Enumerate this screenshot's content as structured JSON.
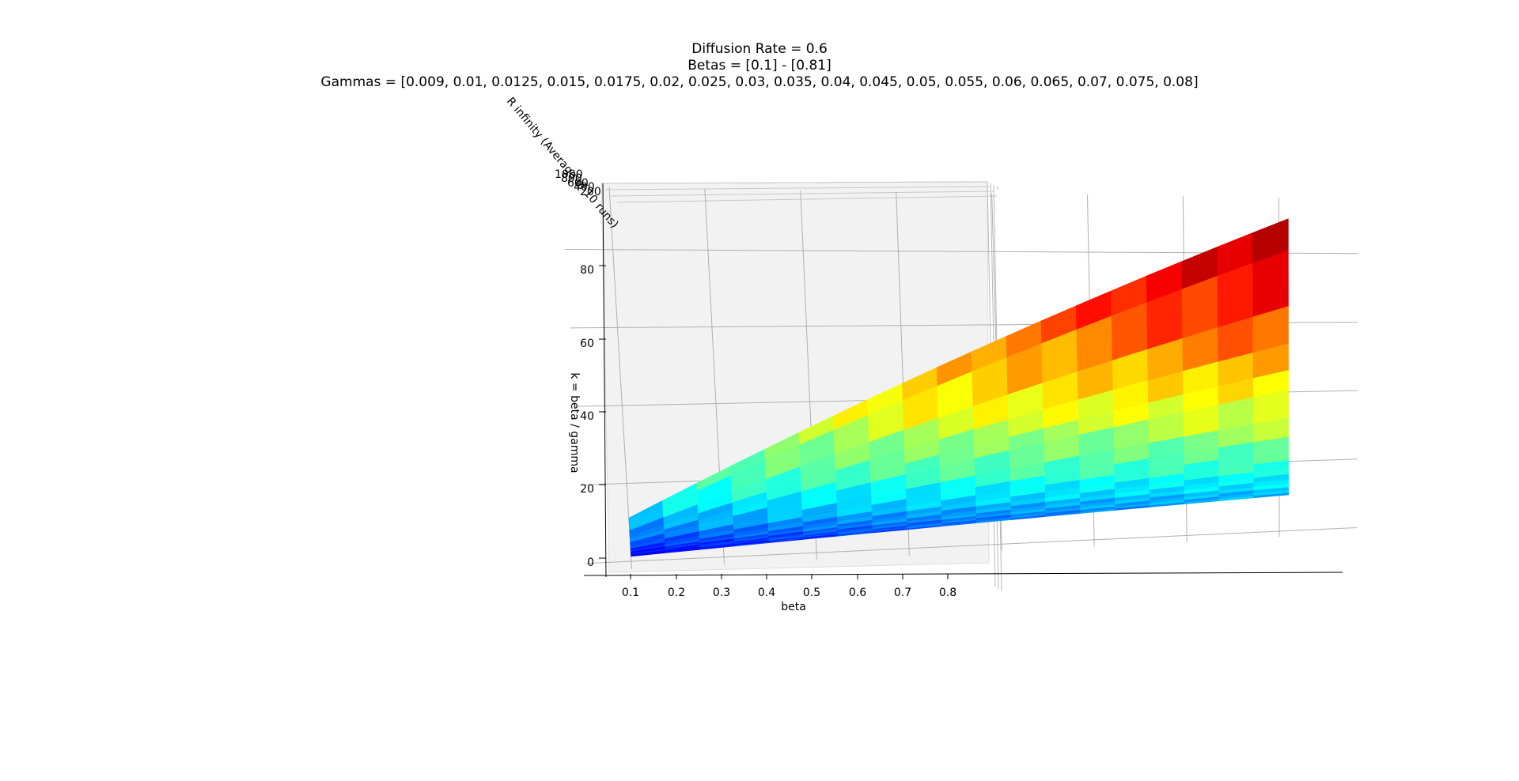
{
  "chart_data": {
    "type": "surface3d",
    "title": "Diffusion Rate = 0.6",
    "subtitle_lines": [
      "Betas = [0.1] - [0.81]",
      "Gammas = [0.009, 0.01, 0.0125, 0.015, 0.0175, 0.02, 0.025, 0.03, 0.035, 0.04, 0.045, 0.05, 0.055, 0.06, 0.065, 0.07, 0.075, 0.08]"
    ],
    "xlabel": "beta",
    "ylabel": "k = beta / gamma",
    "zlabel": "R infinity (Average of 10 runs)",
    "x_ticks": [
      "0.1",
      "0.2",
      "0.3",
      "0.4",
      "0.5",
      "0.6",
      "0.7",
      "0.8"
    ],
    "y_ticks": [
      "0",
      "20",
      "40",
      "60",
      "80"
    ],
    "z_ticks": [
      "1000",
      "800",
      "600",
      "400",
      "200"
    ],
    "xlim": [
      0.05,
      0.86
    ],
    "ylim": [
      -2,
      96
    ],
    "betas_range": [
      0.1,
      0.81
    ],
    "gammas": [
      0.009,
      0.01,
      0.0125,
      0.015,
      0.0175,
      0.02,
      0.025,
      0.03,
      0.035,
      0.04,
      0.045,
      0.05,
      0.055,
      0.06,
      0.065,
      0.07,
      0.075,
      0.08
    ],
    "colormap": "jet",
    "colors": {
      "pane": "#f2f2f2",
      "grid": "#b0b0b0",
      "axis": "#000000"
    }
  }
}
